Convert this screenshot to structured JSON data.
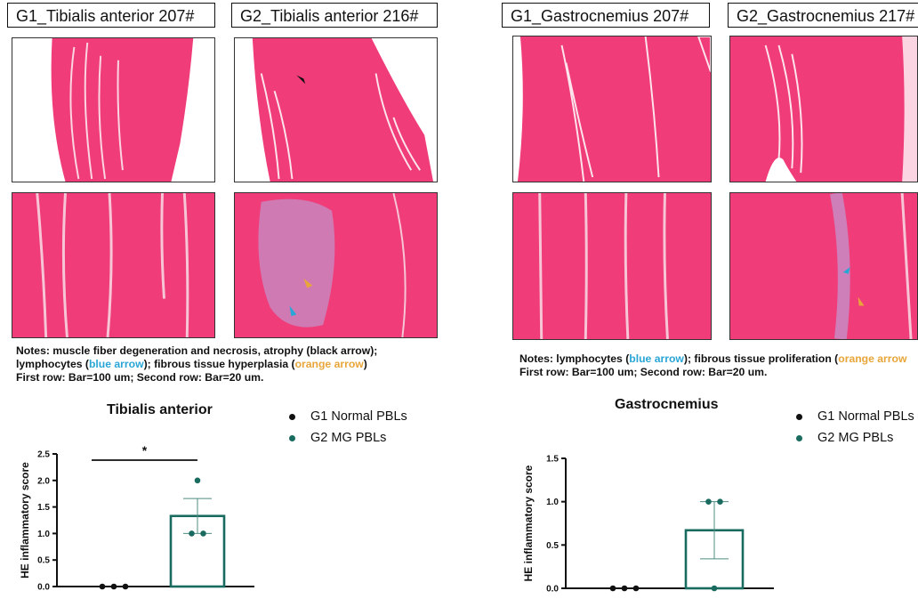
{
  "panels": {
    "ta_g1_label": "G1_Tibialis anterior 207#",
    "ta_g2_label": "G2_Tibialis anterior 216#",
    "gc_g1_label": "G1_Gastrocnemius 207#",
    "gc_g2_label": "G2_Gastrocnemius 217#"
  },
  "notes_left": {
    "line1": "Notes: muscle fiber degeneration and necrosis, atrophy (black arrow);",
    "line2_a": "lymphocytes (",
    "line2_blue": "blue arrow",
    "line2_b": "); fibrous tissue hyperplasia (",
    "line2_orange": "orange arrow",
    "line2_c": ")",
    "line3": "First row: Bar=100 um; Second row: Bar=20 um."
  },
  "notes_right": {
    "line1_a": "Notes: lymphocytes (",
    "line1_blue": "blue arrow",
    "line1_b": "); fibrous tissue proliferation (",
    "line1_orange": "orange arrow",
    "line2": "First row: Bar=100 um;  Second row: Bar=20 um."
  },
  "colors": {
    "g1": "#111111",
    "g2": "#1a6b5f",
    "stain": "#f03c78",
    "blue_arrow": "#2aa6d6",
    "orange_arrow": "#e8a63a"
  },
  "chart_data": [
    {
      "type": "bar",
      "title": "Tibialis anterior",
      "ylabel": "HE inflammatory score",
      "xlabel": "",
      "ylim": [
        0,
        2.5
      ],
      "yticks": [
        "0.0",
        "0.5",
        "1.0",
        "1.5",
        "2.0",
        "2.5"
      ],
      "legend": [
        "G1 Normal PBLs",
        "G2 MG PBLs"
      ],
      "legend_position": "top-right",
      "significance": "*",
      "series": [
        {
          "name": "G1 Normal PBLs",
          "mean": 0,
          "sem": 0,
          "points": [
            0,
            0,
            0
          ]
        },
        {
          "name": "G2 MG PBLs",
          "mean": 1.33,
          "sem": 0.33,
          "points": [
            2,
            1,
            1
          ]
        }
      ]
    },
    {
      "type": "bar",
      "title": "Gastrocnemius",
      "ylabel": "HE inflammatory score",
      "xlabel": "",
      "ylim": [
        0,
        1.5
      ],
      "yticks": [
        "0.0",
        "0.5",
        "1.0",
        "1.5"
      ],
      "legend": [
        "G1 Normal PBLs",
        "G2 MG PBLs"
      ],
      "legend_position": "top-right",
      "series": [
        {
          "name": "G1 Normal PBLs",
          "mean": 0,
          "sem": 0,
          "points": [
            0,
            0,
            0
          ]
        },
        {
          "name": "G2 MG PBLs",
          "mean": 0.67,
          "sem": 0.33,
          "points": [
            1,
            1,
            0
          ]
        }
      ]
    }
  ]
}
